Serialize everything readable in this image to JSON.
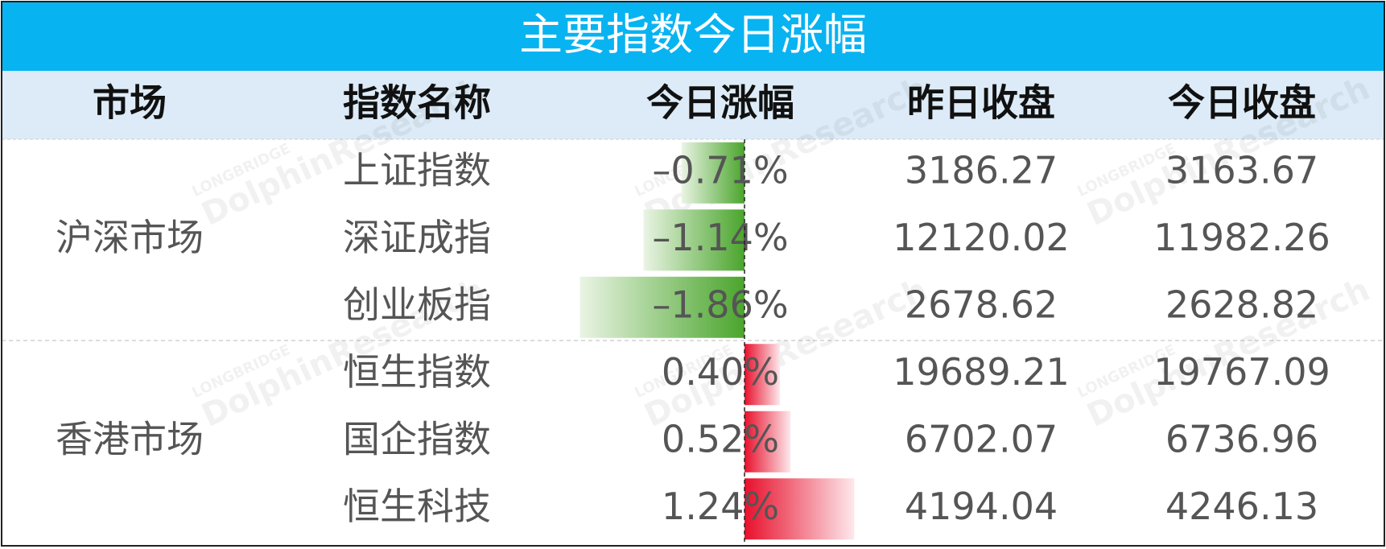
{
  "title": "主要指数今日涨幅",
  "header": [
    "市场",
    "指数名称",
    "今日涨幅",
    "昨日收盘",
    "今日收盘"
  ],
  "watermark": {
    "brand": "LONGBRIDGE",
    "name": "DolphinResearch"
  },
  "groups": [
    {
      "name": "沪深市场",
      "rows": [
        {
          "index": "上证指数",
          "change": {
            "value": -0.71,
            "label": "–0.71%"
          },
          "prev_close": 3186.27,
          "close": 3163.67
        },
        {
          "index": "深证成指",
          "change": {
            "value": -1.14,
            "label": "–1.14%"
          },
          "prev_close": 12120.02,
          "close": 11982.26
        },
        {
          "index": "创业板指",
          "change": {
            "value": -1.86,
            "label": "–1.86%"
          },
          "prev_close": 2678.62,
          "close": 2628.82
        }
      ]
    },
    {
      "name": "香港市场",
      "rows": [
        {
          "index": "恒生指数",
          "change": {
            "value": 0.4,
            "label": "0.40%"
          },
          "prev_close": 19689.21,
          "close": 19767.09
        },
        {
          "index": "国企指数",
          "change": {
            "value": 0.52,
            "label": "0.52%"
          },
          "prev_close": 6702.07,
          "close": 6736.96
        },
        {
          "index": "恒生科技",
          "change": {
            "value": 1.24,
            "label": "1.24%"
          },
          "prev_close": 4194.04,
          "close": 4246.13
        }
      ]
    }
  ]
}
